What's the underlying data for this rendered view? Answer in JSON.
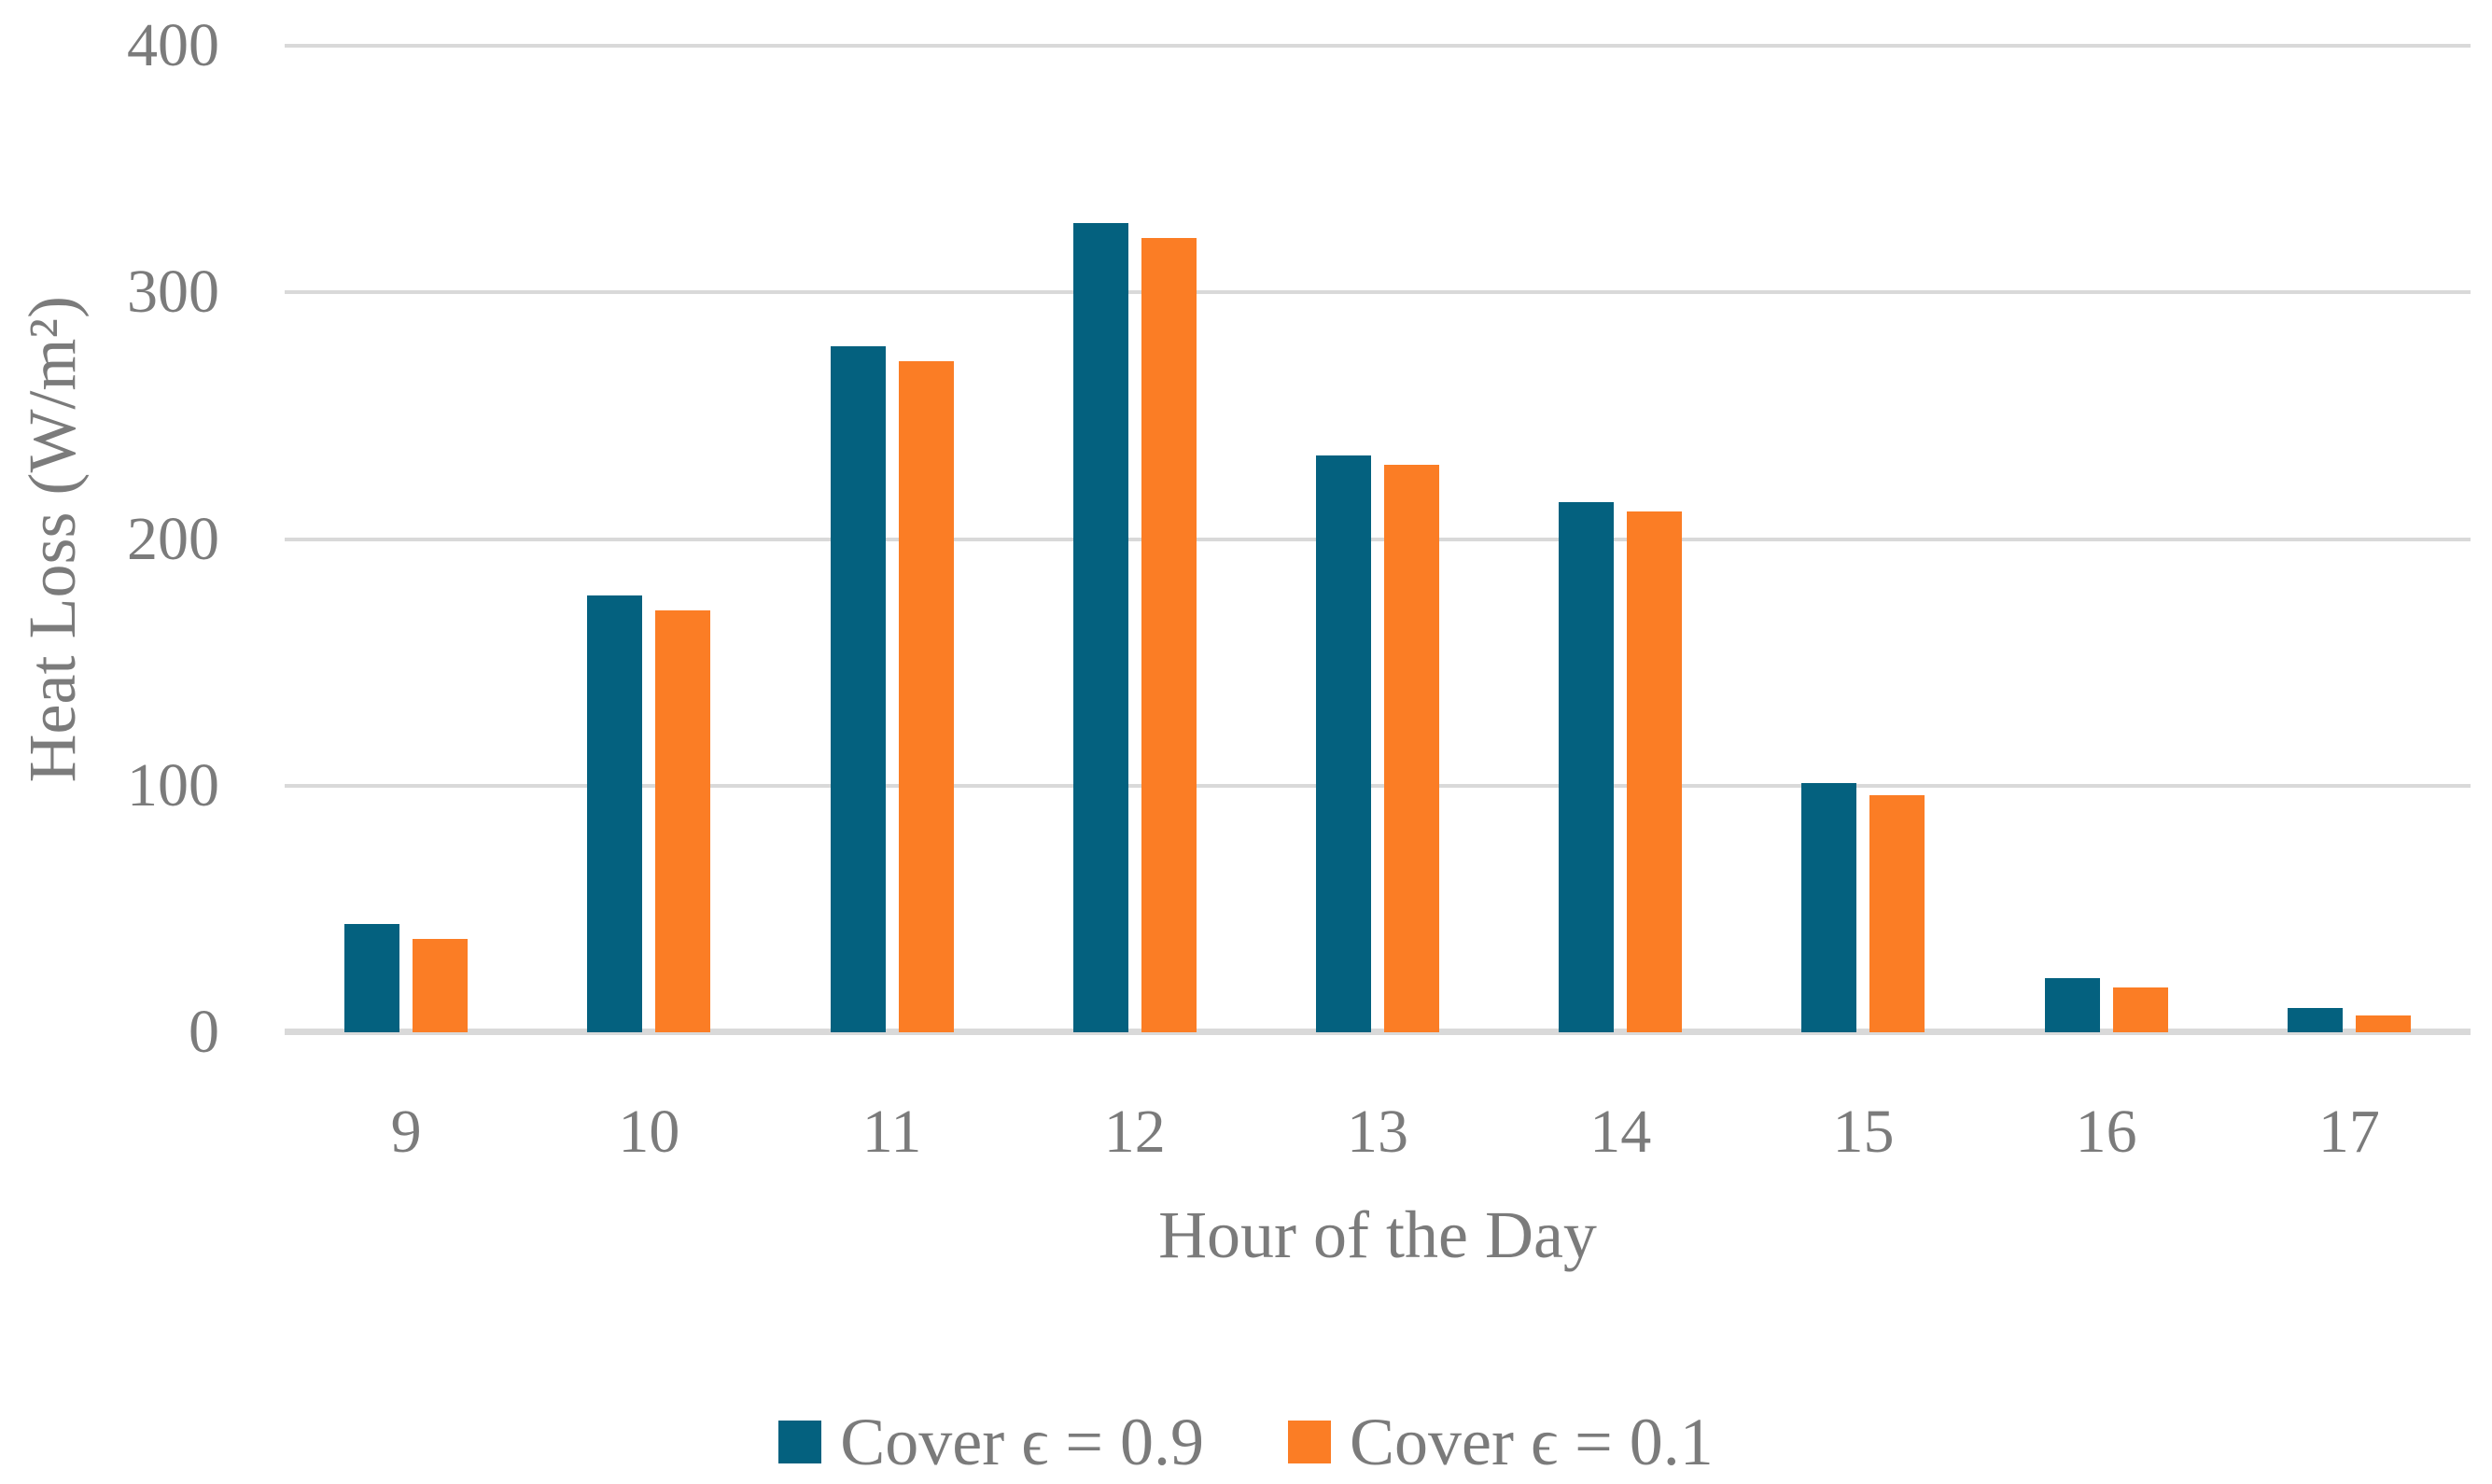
{
  "figure": {
    "background_color": "#FFFFFF",
    "text_color": "#7B7B7B",
    "gridline_color": "#D9D9D9",
    "baseline_color": "#D9D9D9"
  },
  "chart_data": {
    "type": "bar",
    "title": "",
    "xlabel": "Hour of the Day",
    "ylabel": "Heat Loss (W/m²)",
    "categories": [
      "9",
      "10",
      "11",
      "12",
      "13",
      "14",
      "15",
      "16",
      "17"
    ],
    "series": [
      {
        "name": "Cover ϵ = 0.9",
        "color": "#04617F",
        "values": [
          44,
          177,
          278,
          328,
          234,
          215,
          101,
          22,
          10
        ]
      },
      {
        "name": "Cover ϵ = 0.1",
        "color": "#FB7D25",
        "values": [
          38,
          171,
          272,
          322,
          230,
          211,
          96,
          18,
          7
        ]
      }
    ],
    "ylim": [
      0,
      400
    ],
    "yticks": [
      0,
      100,
      200,
      300,
      400
    ],
    "grid": "horizontal",
    "legend_position": "bottom"
  }
}
